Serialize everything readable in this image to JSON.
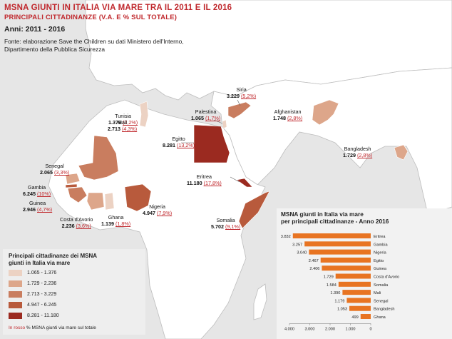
{
  "header": {
    "title": "MSNA GIUNTI IN ITALIA VIA MARE TRA IL 2011 E IL 2016",
    "subtitle": "PRINCIPALI CITTADINANZE (V.A. E % SUL TOTALE)",
    "years": "Anni: 2011 - 2016",
    "source_line1": "Fonte: elaborazione Save the Children su dati Ministero dell'Interno,",
    "source_line2": "Dipartimento della Pubblica Sicurezza"
  },
  "colors": {
    "class1": "#ecd2c3",
    "class2": "#dda68a",
    "class3": "#c97d5f",
    "class4": "#b85a3c",
    "class5": "#9b2a20",
    "bar": "#e87422",
    "accent": "#c0282d",
    "land": "#ffffff",
    "sea": "#e6e6e6"
  },
  "countries": [
    {
      "name": "Siria",
      "value": "3.229",
      "pct": "(5,2%)",
      "class": "class3"
    },
    {
      "name": "Palestina",
      "value": "1.065",
      "pct": "(1,7%)",
      "class": "class1"
    },
    {
      "name": "Tunisia",
      "value": "1.376",
      "pct": "(2,2%)",
      "class": "class1"
    },
    {
      "name": "Afghanistan",
      "value": "1.748",
      "pct": "(2,8%)",
      "class": "class2"
    },
    {
      "name": "Mali",
      "value": "2.713",
      "pct": "(4,3%)",
      "class": "class3"
    },
    {
      "name": "Egitto",
      "value": "8.281",
      "pct": "(13,2%)",
      "class": "class5"
    },
    {
      "name": "Bangladesh",
      "value": "1.729",
      "pct": "(2,8%)",
      "class": "class2"
    },
    {
      "name": "Senegal",
      "value": "2.065",
      "pct": "(3,3%)",
      "class": "class2"
    },
    {
      "name": "Eritrea",
      "value": "11.180",
      "pct": "(17,8%)",
      "class": "class5"
    },
    {
      "name": "Gambia",
      "value": "6.245",
      "pct": "(10%)",
      "class": "class4"
    },
    {
      "name": "Nigeria",
      "value": "4.947",
      "pct": "(7,9%)",
      "class": "class4"
    },
    {
      "name": "Guinea",
      "value": "2.946",
      "pct": "(4,7%)",
      "class": "class3"
    },
    {
      "name": "Costa d'Avorio",
      "value": "2.236",
      "pct": "(3,6%)",
      "class": "class2"
    },
    {
      "name": "Ghana",
      "value": "1.139",
      "pct": "(1,8%)",
      "class": "class1"
    },
    {
      "name": "Somalia",
      "value": "5.702",
      "pct": "(9,1%)",
      "class": "class4"
    }
  ],
  "legend": {
    "title_line1": "Principali cittadinanze dei MSNA",
    "title_line2": "giunti in Italia via mare",
    "classes": [
      {
        "label": "1.065 - 1.376",
        "color": "#ecd2c3"
      },
      {
        "label": "1.729 - 2.236",
        "color": "#dda68a"
      },
      {
        "label": "2.713 - 3.229",
        "color": "#c97d5f"
      },
      {
        "label": "4.947 - 6.245",
        "color": "#b85a3c"
      },
      {
        "label": "8.281 - 11.180",
        "color": "#9b2a20"
      }
    ],
    "note_red": "In rosso",
    "note_rest": " % MSNA giunti via mare sul totale"
  },
  "chart_data": {
    "type": "bar",
    "title": "MSNA giunti in Italia via mare per principali cittadinanze - Anno 2016",
    "title_line1": "MSNA giunti in Italia via mare",
    "title_line2": "per principali cittadinanze - Anno 2016",
    "orientation": "horizontal-reversed",
    "categories": [
      "Eritrea",
      "Gambia",
      "Nigeria",
      "Egitto",
      "Guinea",
      "Costa d'Avorio",
      "Somalia",
      "Mali",
      "Senegal",
      "Bangladesh",
      "Ghana"
    ],
    "values": [
      3832,
      3257,
      3040,
      2467,
      2406,
      1729,
      1584,
      1390,
      1179,
      1053,
      499
    ],
    "value_labels": [
      "3.832",
      "3.257",
      "3.040",
      "2.467",
      "2.406",
      "1.729",
      "1.584",
      "1.390",
      "1.179",
      "1.053",
      "499"
    ],
    "xlim": [
      0,
      4000
    ],
    "xticks": [
      4000,
      3000,
      2000,
      1000,
      0
    ],
    "xtick_labels": [
      "4.000",
      "3.000",
      "2.000",
      "1.000",
      "0"
    ],
    "grid": false
  }
}
